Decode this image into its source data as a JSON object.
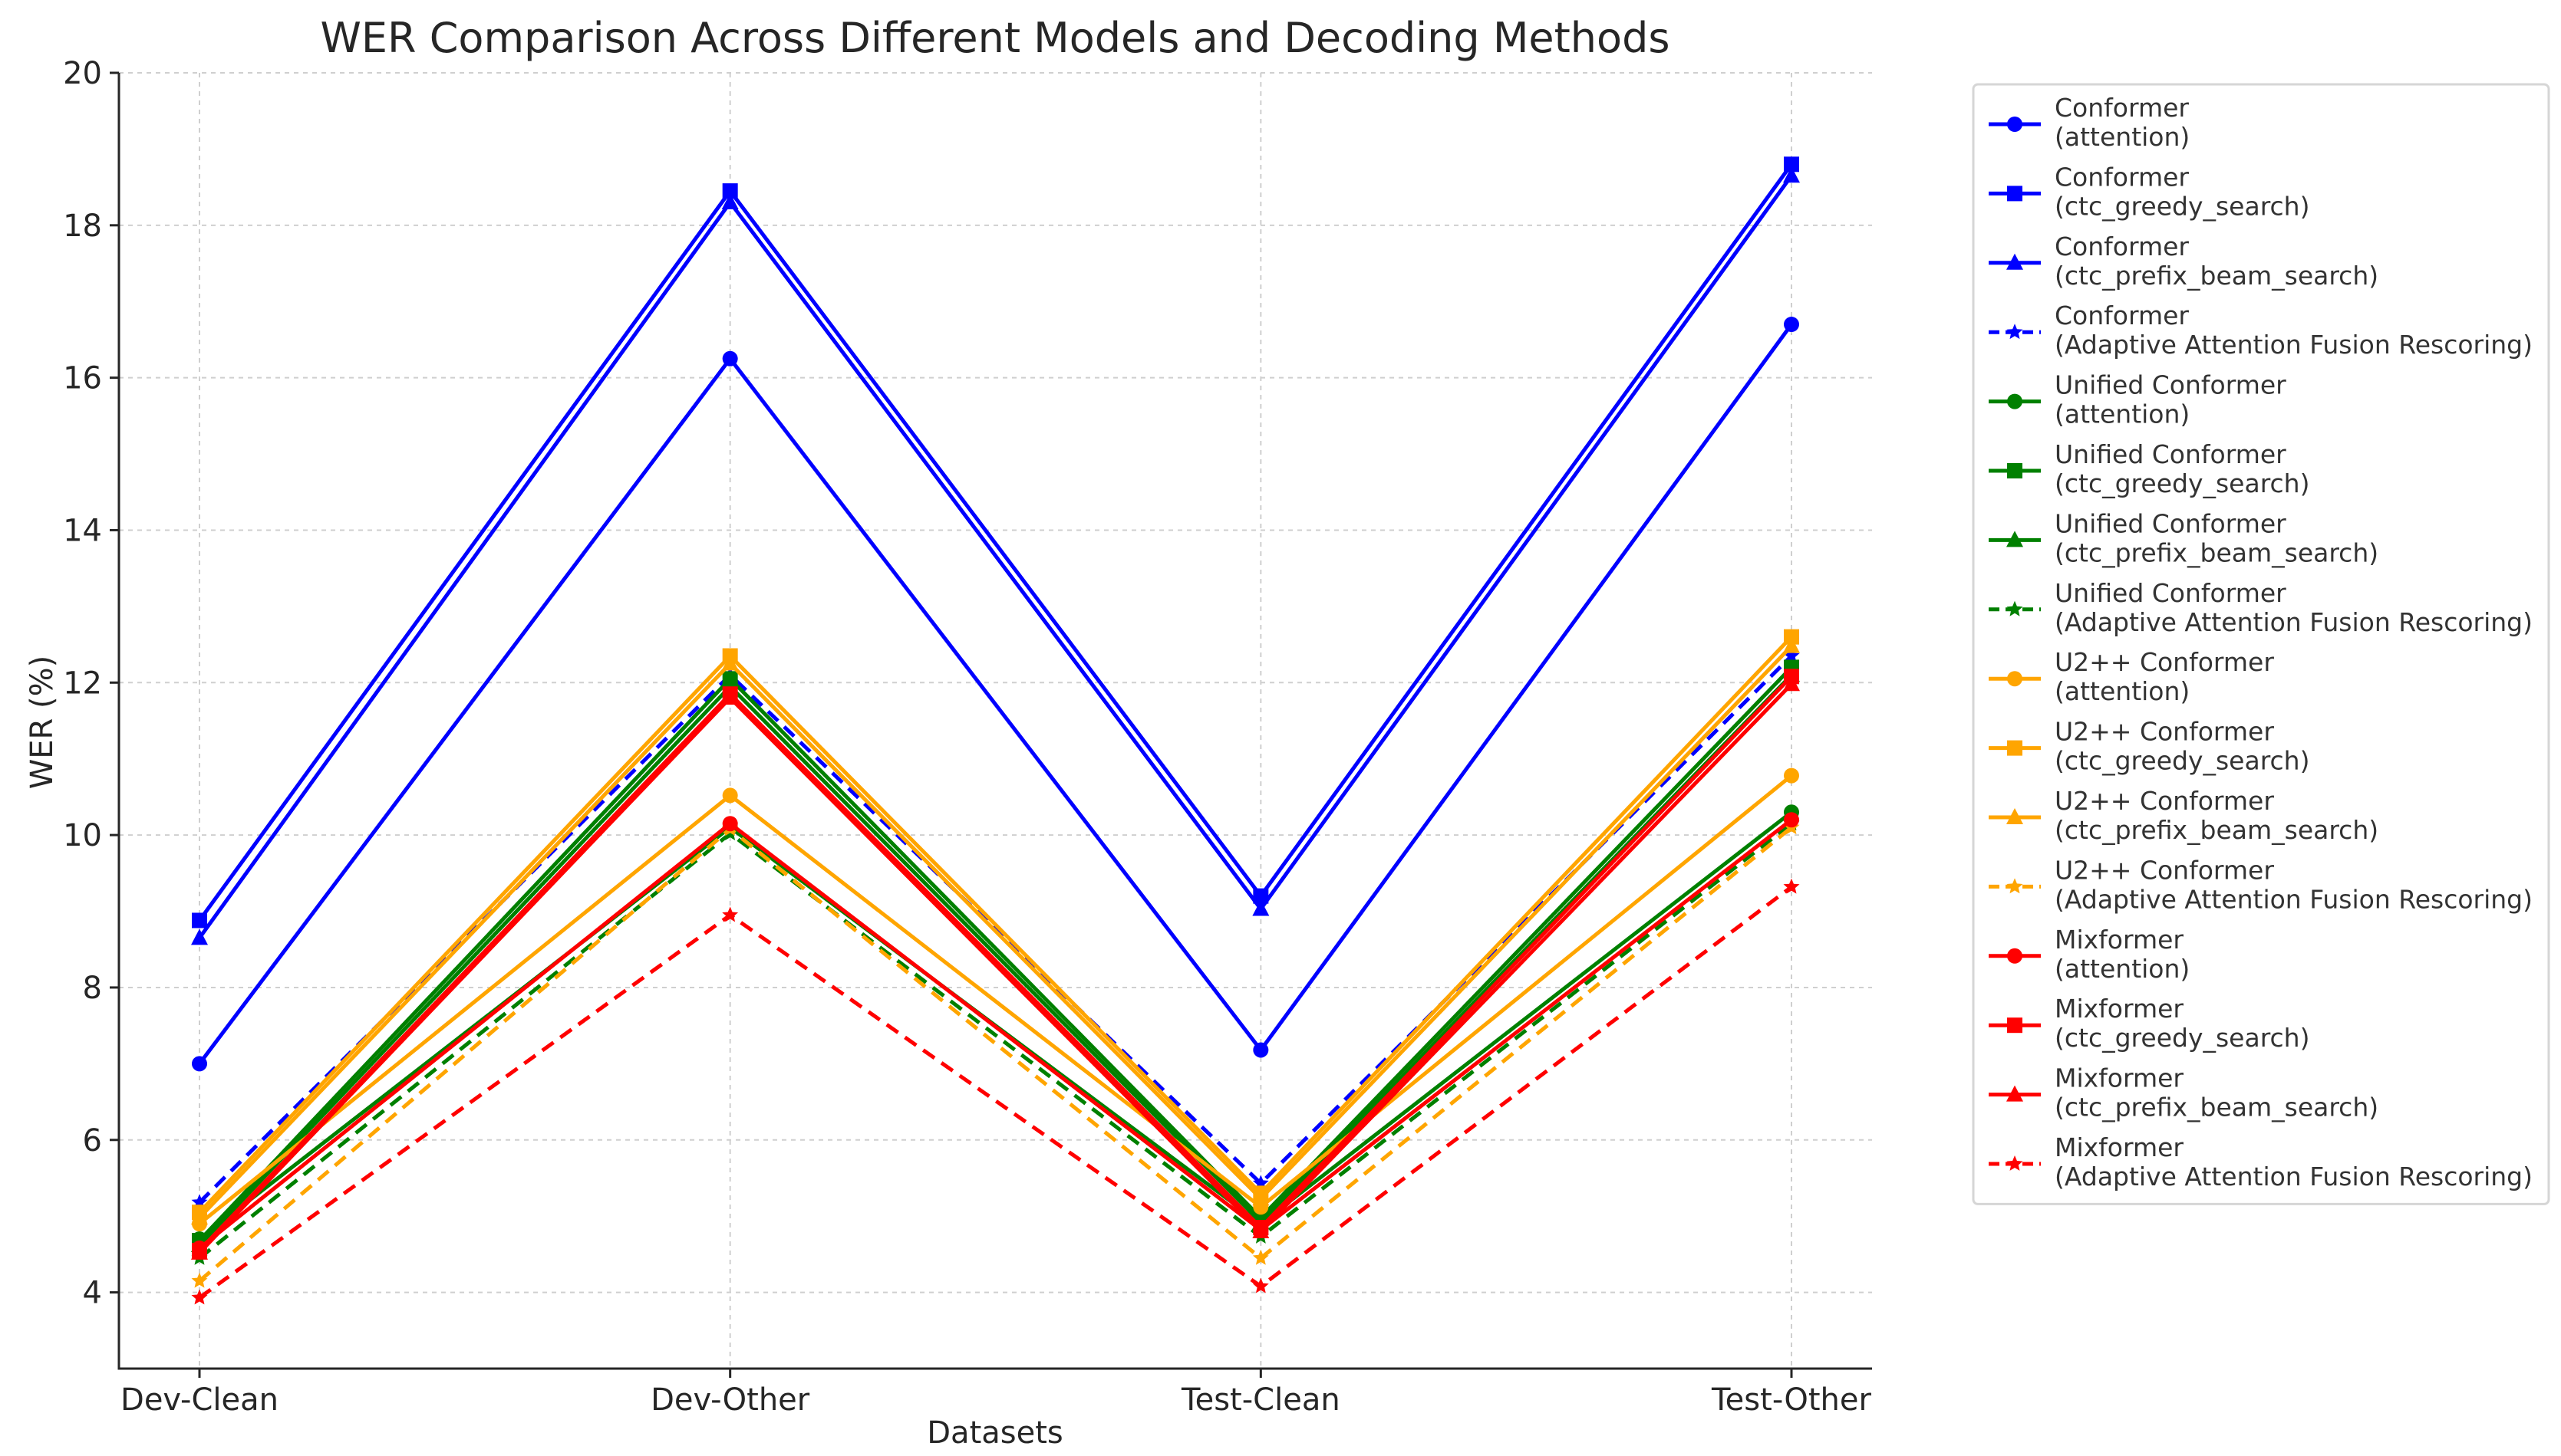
{
  "chart_data": {
    "type": "line",
    "title": "WER Comparison Across Different Models and Decoding Methods",
    "xlabel": "Datasets",
    "ylabel": "WER (%)",
    "categories": [
      "Dev-Clean",
      "Dev-Other",
      "Test-Clean",
      "Test-Other"
    ],
    "ylim": [
      3,
      20
    ],
    "yticks": [
      4,
      6,
      8,
      10,
      12,
      14,
      16,
      18,
      20
    ],
    "grid": true,
    "legend_position": "outside-right",
    "series": [
      {
        "model": "Conformer",
        "method": "(attention)",
        "color": "#0000ff",
        "marker": "circle",
        "dashed": false,
        "values": [
          7.0,
          16.25,
          7.18,
          16.7
        ]
      },
      {
        "model": "Conformer",
        "method": "(ctc_greedy_search)",
        "color": "#0000ff",
        "marker": "square",
        "dashed": false,
        "values": [
          8.88,
          18.45,
          9.2,
          18.8
        ]
      },
      {
        "model": "Conformer",
        "method": "(ctc_prefix_beam_search)",
        "color": "#0000ff",
        "marker": "triangle",
        "dashed": false,
        "values": [
          8.65,
          18.3,
          9.03,
          18.65
        ]
      },
      {
        "model": "Conformer",
        "method": "(Adaptive Attention Fusion Rescoring)",
        "color": "#0000ff",
        "marker": "star",
        "dashed": true,
        "values": [
          5.18,
          12.1,
          5.43,
          12.35
        ]
      },
      {
        "model": "Unified Conformer",
        "method": "(attention)",
        "color": "#008000",
        "marker": "circle",
        "dashed": false,
        "values": [
          4.7,
          10.1,
          4.9,
          10.3
        ]
      },
      {
        "model": "Unified Conformer",
        "method": "(ctc_greedy_search)",
        "color": "#008000",
        "marker": "square",
        "dashed": false,
        "values": [
          4.68,
          12.05,
          4.98,
          12.2
        ]
      },
      {
        "model": "Unified Conformer",
        "method": "(ctc_prefix_beam_search)",
        "color": "#008000",
        "marker": "triangle",
        "dashed": false,
        "values": [
          4.62,
          11.95,
          4.92,
          12.1
        ]
      },
      {
        "model": "Unified Conformer",
        "method": "(Adaptive Attention Fusion Rescoring)",
        "color": "#008000",
        "marker": "star",
        "dashed": true,
        "values": [
          4.45,
          10.02,
          4.73,
          10.15
        ]
      },
      {
        "model": "U2++ Conformer",
        "method": "(attention)",
        "color": "#ffa500",
        "marker": "circle",
        "dashed": false,
        "values": [
          4.9,
          10.52,
          5.12,
          10.78
        ]
      },
      {
        "model": "U2++ Conformer",
        "method": "(ctc_greedy_search)",
        "color": "#ffa500",
        "marker": "square",
        "dashed": false,
        "values": [
          5.05,
          12.35,
          5.3,
          12.6
        ]
      },
      {
        "model": "U2++ Conformer",
        "method": "(ctc_prefix_beam_search)",
        "color": "#ffa500",
        "marker": "triangle",
        "dashed": false,
        "values": [
          4.98,
          12.25,
          5.23,
          12.48
        ]
      },
      {
        "model": "U2++ Conformer",
        "method": "(Adaptive Attention Fusion Rescoring)",
        "color": "#ffa500",
        "marker": "star",
        "dashed": true,
        "values": [
          4.15,
          10.08,
          4.45,
          10.1
        ]
      },
      {
        "model": "Mixformer",
        "method": "(attention)",
        "color": "#ff0000",
        "marker": "circle",
        "dashed": false,
        "values": [
          4.58,
          10.15,
          4.82,
          10.2
        ]
      },
      {
        "model": "Mixformer",
        "method": "(ctc_greedy_search)",
        "color": "#ff0000",
        "marker": "square",
        "dashed": false,
        "values": [
          4.55,
          11.85,
          4.85,
          12.08
        ]
      },
      {
        "model": "Mixformer",
        "method": "(ctc_prefix_beam_search)",
        "color": "#ff0000",
        "marker": "triangle",
        "dashed": false,
        "values": [
          4.52,
          11.8,
          4.8,
          11.98
        ]
      },
      {
        "model": "Mixformer",
        "method": "(Adaptive Attention Fusion Rescoring)",
        "color": "#ff0000",
        "marker": "star",
        "dashed": true,
        "values": [
          3.93,
          8.95,
          4.08,
          9.32
        ]
      }
    ]
  }
}
